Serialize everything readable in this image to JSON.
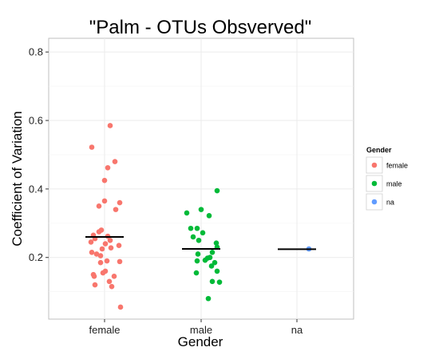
{
  "chart_data": {
    "type": "scatter",
    "title": "\"Palm - OTUs Obsverved\"",
    "xlabel": "Gender",
    "ylabel": "Coefficient of Variation",
    "categories": [
      "female",
      "male",
      "na"
    ],
    "ylim": [
      0.02,
      0.84
    ],
    "yticks": [
      0.2,
      0.4,
      0.6,
      0.8
    ],
    "ytick_labels": [
      "0.2",
      "0.4",
      "0.6",
      "0.8"
    ],
    "grid": true,
    "legend": {
      "title": "Gender",
      "position": "right",
      "entries": [
        "female",
        "male",
        "na"
      ]
    },
    "colors": {
      "female": "#F8766D",
      "male": "#00BA38",
      "na": "#619CFF",
      "mean_line": "#000000"
    },
    "series": [
      {
        "name": "female",
        "points": [
          {
            "x": 0.07,
            "y": 0.585
          },
          {
            "x": -0.16,
            "y": 0.522
          },
          {
            "x": 0.13,
            "y": 0.48
          },
          {
            "x": 0.04,
            "y": 0.462
          },
          {
            "x": 0.0,
            "y": 0.425
          },
          {
            "x": 0.0,
            "y": 0.365
          },
          {
            "x": 0.19,
            "y": 0.36
          },
          {
            "x": -0.07,
            "y": 0.35
          },
          {
            "x": 0.14,
            "y": 0.34
          },
          {
            "x": -0.04,
            "y": 0.28
          },
          {
            "x": -0.07,
            "y": 0.275
          },
          {
            "x": -0.14,
            "y": 0.265
          },
          {
            "x": 0.04,
            "y": 0.262
          },
          {
            "x": -0.12,
            "y": 0.255
          },
          {
            "x": 0.07,
            "y": 0.25
          },
          {
            "x": -0.17,
            "y": 0.245
          },
          {
            "x": 0.01,
            "y": 0.24
          },
          {
            "x": 0.18,
            "y": 0.235
          },
          {
            "x": 0.08,
            "y": 0.228
          },
          {
            "x": -0.03,
            "y": 0.225
          },
          {
            "x": -0.16,
            "y": 0.215
          },
          {
            "x": -0.1,
            "y": 0.21
          },
          {
            "x": -0.05,
            "y": 0.205
          },
          {
            "x": 0.03,
            "y": 0.19
          },
          {
            "x": 0.19,
            "y": 0.188
          },
          {
            "x": -0.05,
            "y": 0.185
          },
          {
            "x": 0.01,
            "y": 0.16
          },
          {
            "x": -0.02,
            "y": 0.155
          },
          {
            "x": -0.14,
            "y": 0.15
          },
          {
            "x": 0.12,
            "y": 0.145
          },
          {
            "x": -0.13,
            "y": 0.145
          },
          {
            "x": 0.06,
            "y": 0.13
          },
          {
            "x": -0.12,
            "y": 0.12
          },
          {
            "x": 0.09,
            "y": 0.115
          },
          {
            "x": 0.2,
            "y": 0.055
          }
        ],
        "mean": 0.26
      },
      {
        "name": "male",
        "points": [
          {
            "x": 0.2,
            "y": 0.395
          },
          {
            "x": 0.0,
            "y": 0.34
          },
          {
            "x": -0.18,
            "y": 0.33
          },
          {
            "x": 0.1,
            "y": 0.322
          },
          {
            "x": -0.05,
            "y": 0.285
          },
          {
            "x": -0.13,
            "y": 0.285
          },
          {
            "x": 0.02,
            "y": 0.272
          },
          {
            "x": -0.1,
            "y": 0.26
          },
          {
            "x": -0.03,
            "y": 0.25
          },
          {
            "x": 0.19,
            "y": 0.242
          },
          {
            "x": 0.2,
            "y": 0.23
          },
          {
            "x": 0.14,
            "y": 0.215
          },
          {
            "x": -0.04,
            "y": 0.21
          },
          {
            "x": 0.11,
            "y": 0.2
          },
          {
            "x": 0.08,
            "y": 0.198
          },
          {
            "x": 0.05,
            "y": 0.192
          },
          {
            "x": -0.05,
            "y": 0.19
          },
          {
            "x": 0.17,
            "y": 0.185
          },
          {
            "x": 0.13,
            "y": 0.175
          },
          {
            "x": 0.2,
            "y": 0.16
          },
          {
            "x": -0.06,
            "y": 0.155
          },
          {
            "x": 0.14,
            "y": 0.13
          },
          {
            "x": 0.23,
            "y": 0.128
          },
          {
            "x": 0.09,
            "y": 0.08
          }
        ],
        "mean": 0.225
      },
      {
        "name": "na",
        "points": [
          {
            "x": 0.15,
            "y": 0.225
          }
        ],
        "mean": 0.224
      }
    ]
  }
}
